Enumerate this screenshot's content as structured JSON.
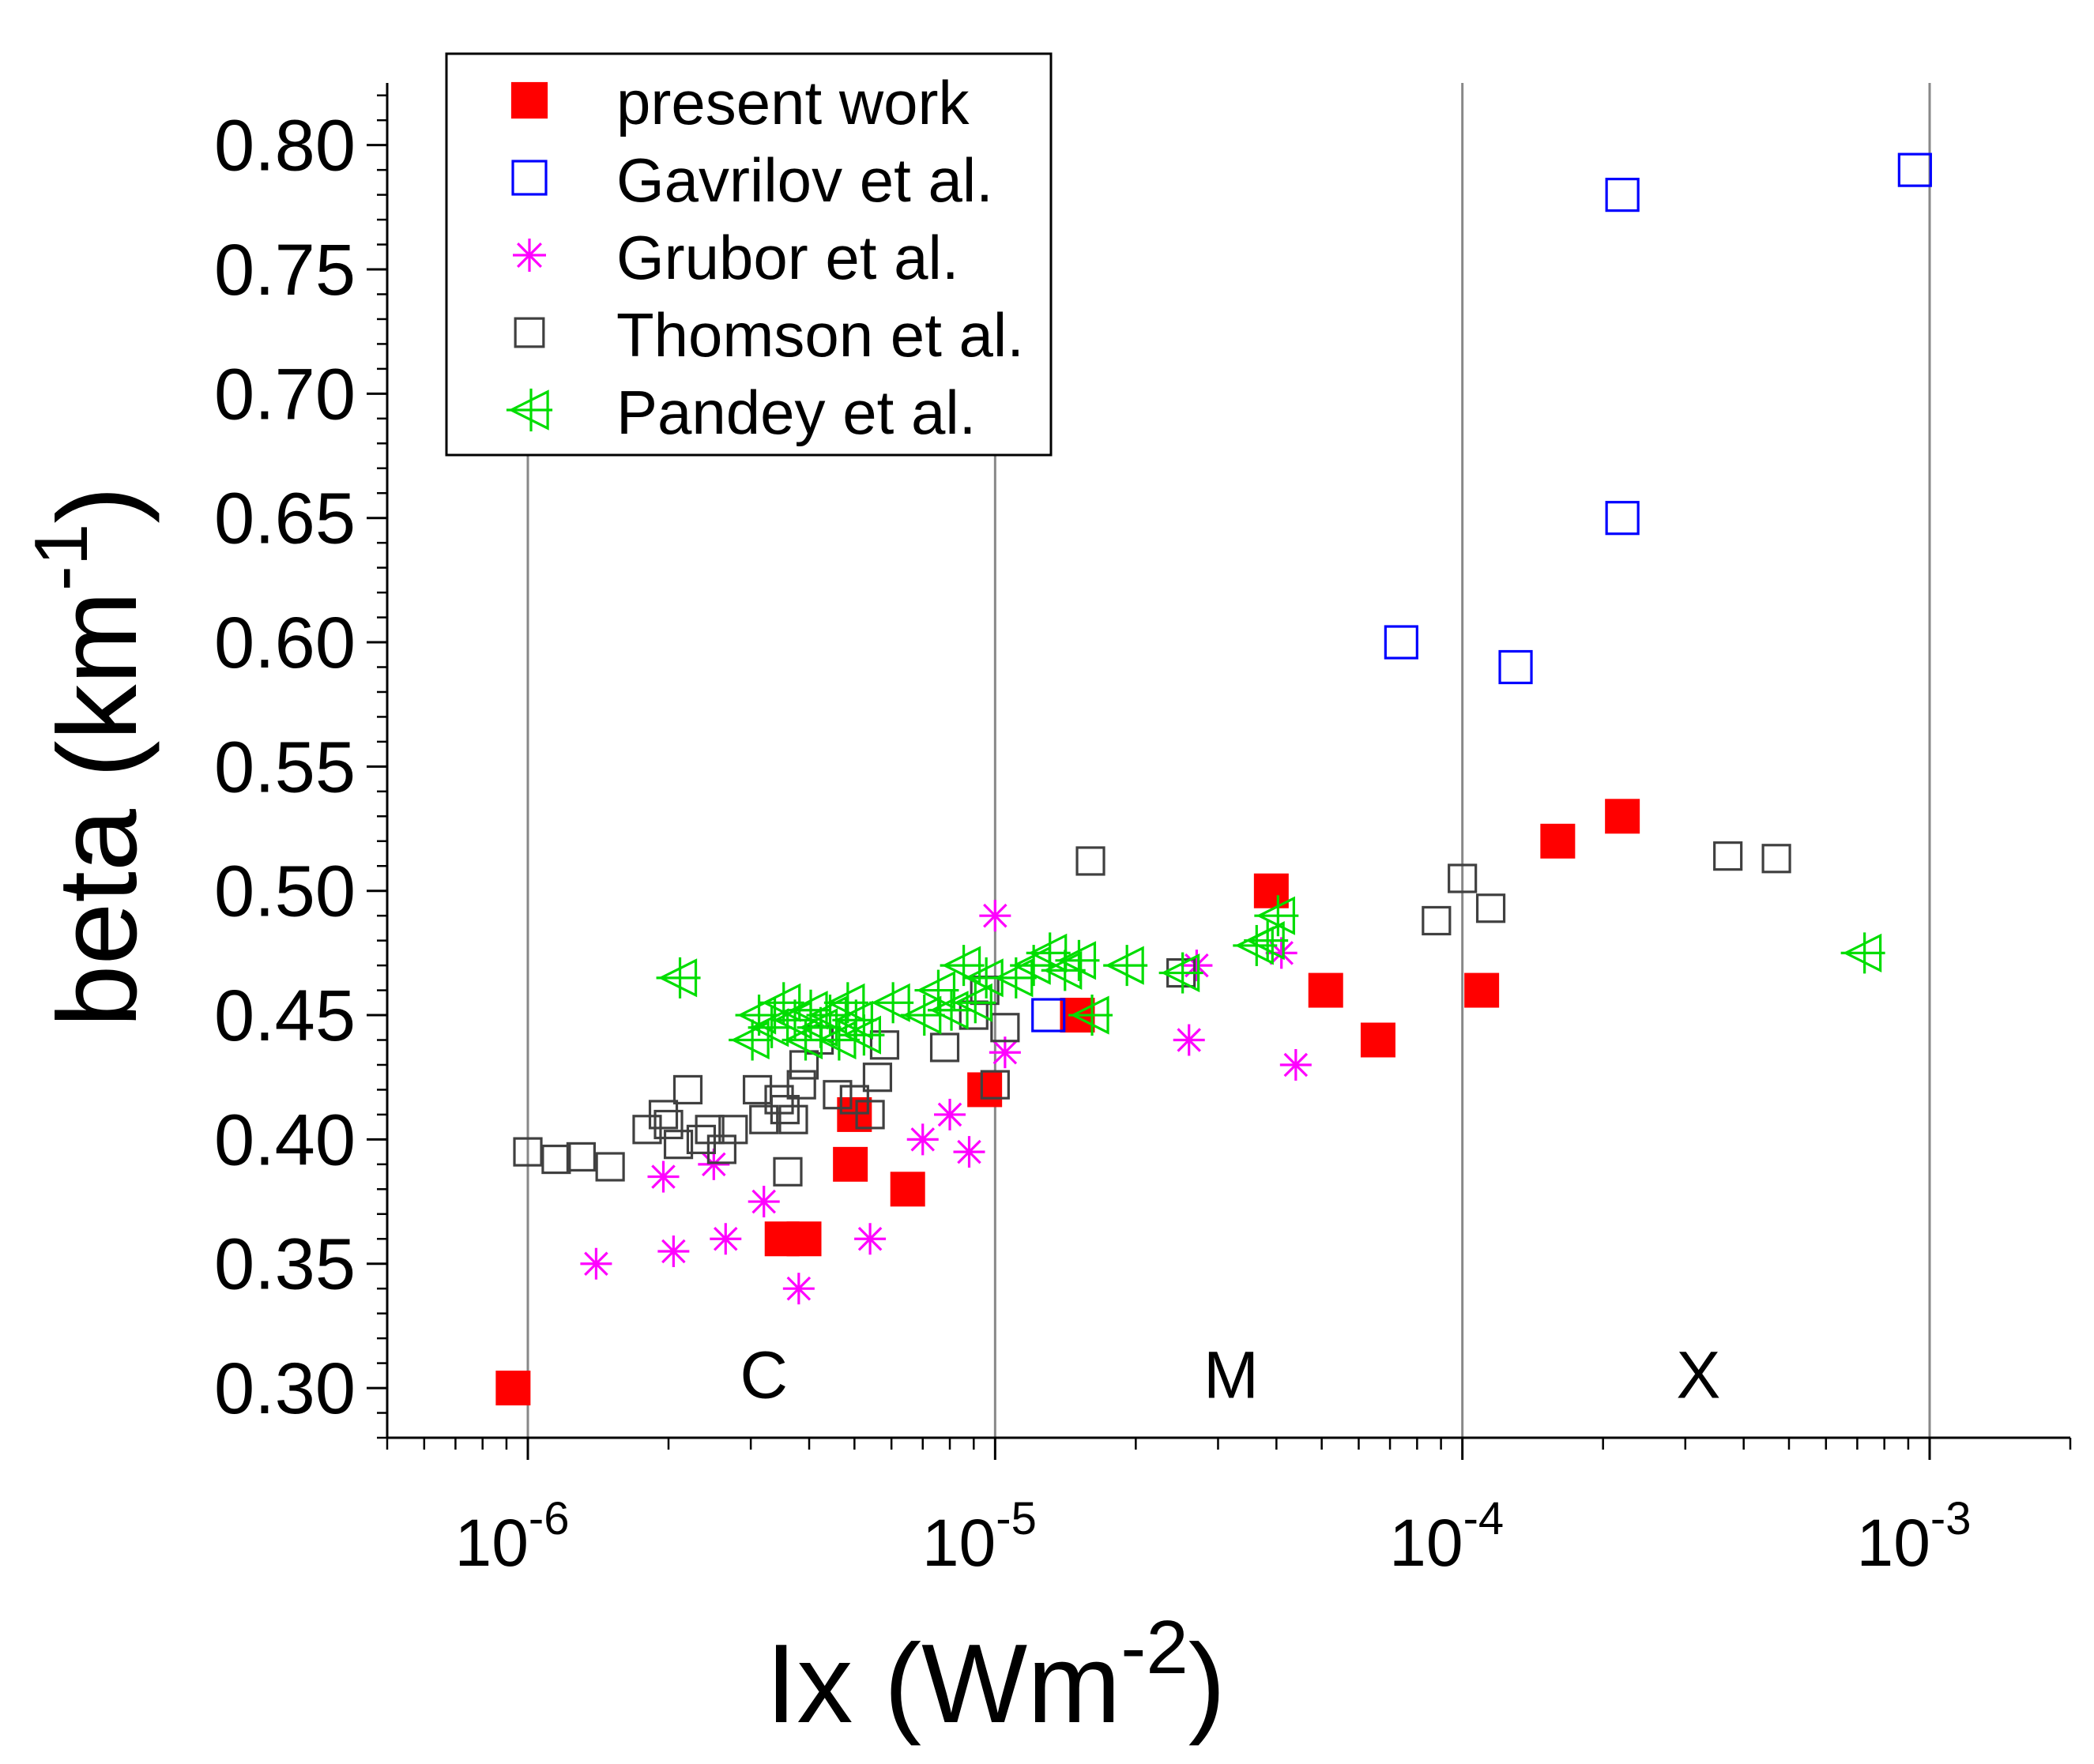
{
  "chart_data": {
    "type": "scatter",
    "title": "",
    "xlabel": "Ix  (Wm",
    "xlabel_sup": "-2",
    "xlabel_close": ")",
    "ylabel": "beta (km",
    "ylabel_sup": "-1",
    "ylabel_close": ")",
    "xscale": "log",
    "xlim": [
      5e-07,
      0.002
    ],
    "ylim": [
      0.28,
      0.825
    ],
    "grid": "vertical lines at each decade",
    "x_ticks": [
      {
        "value": 1e-06,
        "base": "10",
        "exp": "-6"
      },
      {
        "value": 1e-05,
        "base": "10",
        "exp": "-5"
      },
      {
        "value": 0.0001,
        "base": "10",
        "exp": "-4"
      },
      {
        "value": 0.001,
        "base": "10",
        "exp": "-3"
      }
    ],
    "y_ticks": [
      "0.30",
      "0.35",
      "0.40",
      "0.45",
      "0.50",
      "0.55",
      "0.60",
      "0.65",
      "0.70",
      "0.75",
      "0.80"
    ],
    "region_labels": [
      {
        "text": "C",
        "x": 3.2e-06,
        "y": 0.305
      },
      {
        "text": "M",
        "x": 3.2e-05,
        "y": 0.305
      },
      {
        "text": "X",
        "x": 0.00032,
        "y": 0.305
      }
    ],
    "legend_position": "top-left",
    "series": [
      {
        "name": "present work",
        "marker": "filled-square",
        "color": "#ff0000",
        "points": [
          [
            9.3e-07,
            0.3
          ],
          [
            3.5e-06,
            0.36
          ],
          [
            3.9e-06,
            0.36
          ],
          [
            4.9e-06,
            0.39
          ],
          [
            5e-06,
            0.41
          ],
          [
            6.5e-06,
            0.38
          ],
          [
            9.5e-06,
            0.42
          ],
          [
            1.5e-05,
            0.45
          ],
          [
            3.9e-05,
            0.5
          ],
          [
            5.1e-05,
            0.46
          ],
          [
            6.6e-05,
            0.44
          ],
          [
            0.00011,
            0.46
          ],
          [
            0.00016,
            0.52
          ],
          [
            0.00022,
            0.53
          ]
        ]
      },
      {
        "name": "Gavrilov et al.",
        "marker": "open-square",
        "color": "#0000ff",
        "points": [
          [
            1.3e-05,
            0.45
          ],
          [
            7.4e-05,
            0.6
          ],
          [
            0.00013,
            0.59
          ],
          [
            0.00022,
            0.65
          ],
          [
            0.00022,
            0.78
          ],
          [
            0.00093,
            0.79
          ]
        ]
      },
      {
        "name": "Grubor et al.",
        "marker": "asterisk",
        "color": "#ff00ff",
        "points": [
          [
            1.4e-06,
            0.35
          ],
          [
            1.95e-06,
            0.385
          ],
          [
            2.05e-06,
            0.355
          ],
          [
            2.5e-06,
            0.39
          ],
          [
            2.65e-06,
            0.36
          ],
          [
            3.2e-06,
            0.375
          ],
          [
            3.8e-06,
            0.34
          ],
          [
            5.4e-06,
            0.36
          ],
          [
            7e-06,
            0.4
          ],
          [
            8e-06,
            0.41
          ],
          [
            8.8e-06,
            0.395
          ],
          [
            1e-05,
            0.49
          ],
          [
            1.05e-05,
            0.435
          ],
          [
            2.6e-05,
            0.44
          ],
          [
            2.7e-05,
            0.47
          ],
          [
            4.1e-05,
            0.475
          ],
          [
            4.4e-05,
            0.43
          ]
        ]
      },
      {
        "name": "Thomson et al.",
        "marker": "open-square",
        "color": "#404040",
        "points": [
          [
            1e-06,
            0.395
          ],
          [
            1.15e-06,
            0.392
          ],
          [
            1.3e-06,
            0.393
          ],
          [
            1.5e-06,
            0.389
          ],
          [
            1.8e-06,
            0.404
          ],
          [
            1.95e-06,
            0.41
          ],
          [
            2e-06,
            0.406
          ],
          [
            2.1e-06,
            0.398
          ],
          [
            2.2e-06,
            0.42
          ],
          [
            2.35e-06,
            0.4
          ],
          [
            2.45e-06,
            0.404
          ],
          [
            2.6e-06,
            0.396
          ],
          [
            2.75e-06,
            0.404
          ],
          [
            3.1e-06,
            0.42
          ],
          [
            3.2e-06,
            0.408
          ],
          [
            3.45e-06,
            0.416
          ],
          [
            3.55e-06,
            0.412
          ],
          [
            3.6e-06,
            0.387
          ],
          [
            3.7e-06,
            0.408
          ],
          [
            3.85e-06,
            0.422
          ],
          [
            3.9e-06,
            0.43
          ],
          [
            4.2e-06,
            0.44
          ],
          [
            4.6e-06,
            0.418
          ],
          [
            5e-06,
            0.416
          ],
          [
            5.4e-06,
            0.41
          ],
          [
            5.6e-06,
            0.425
          ],
          [
            5.8e-06,
            0.438
          ],
          [
            7.8e-06,
            0.437
          ],
          [
            9e-06,
            0.45
          ],
          [
            9.5e-06,
            0.46
          ],
          [
            1e-05,
            0.422
          ],
          [
            1.05e-05,
            0.445
          ],
          [
            1.6e-05,
            0.512
          ],
          [
            2.5e-05,
            0.467
          ],
          [
            8.8e-05,
            0.488
          ],
          [
            0.0001,
            0.505
          ],
          [
            0.000115,
            0.493
          ],
          [
            0.00037,
            0.514
          ],
          [
            0.00047,
            0.513
          ]
        ]
      },
      {
        "name": "Pandey et al.",
        "marker": "triangle-left",
        "color": "#00dd00",
        "points": [
          [
            2.1e-06,
            0.465
          ],
          [
            3e-06,
            0.44
          ],
          [
            3.1e-06,
            0.45
          ],
          [
            3.3e-06,
            0.445
          ],
          [
            3.5e-06,
            0.455
          ],
          [
            3.7e-06,
            0.448
          ],
          [
            3.9e-06,
            0.44
          ],
          [
            4e-06,
            0.452
          ],
          [
            4.2e-06,
            0.445
          ],
          [
            4.4e-06,
            0.45
          ],
          [
            4.6e-06,
            0.44
          ],
          [
            4.8e-06,
            0.455
          ],
          [
            5e-06,
            0.448
          ],
          [
            5.2e-06,
            0.442
          ],
          [
            6e-06,
            0.455
          ],
          [
            7e-06,
            0.45
          ],
          [
            7.5e-06,
            0.46
          ],
          [
            8e-06,
            0.452
          ],
          [
            8.5e-06,
            0.47
          ],
          [
            9e-06,
            0.455
          ],
          [
            9.5e-06,
            0.465
          ],
          [
            1.1e-05,
            0.465
          ],
          [
            1.2e-05,
            0.47
          ],
          [
            1.3e-05,
            0.475
          ],
          [
            1.4e-05,
            0.468
          ],
          [
            1.5e-05,
            0.472
          ],
          [
            1.6e-05,
            0.45
          ],
          [
            1.9e-05,
            0.47
          ],
          [
            2.5e-05,
            0.467
          ],
          [
            3.6e-05,
            0.478
          ],
          [
            3.8e-05,
            0.48
          ],
          [
            4e-05,
            0.49
          ],
          [
            0.00072,
            0.475
          ]
        ]
      }
    ]
  }
}
